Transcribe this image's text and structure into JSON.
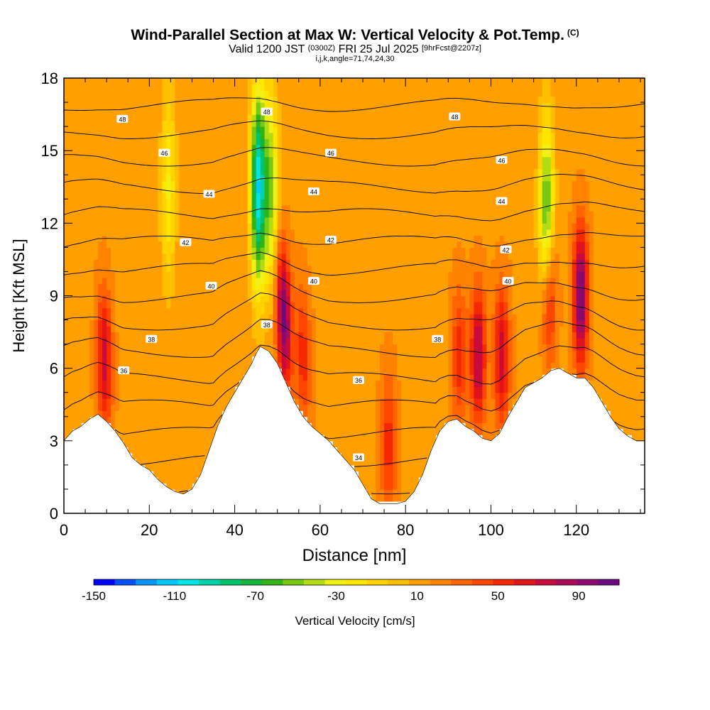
{
  "header": {
    "title": "Wind-Parallel Section at Max W: Vertical Velocity & Pot.Temp.",
    "copyright": "(C)",
    "valid_prefix": "Valid 1200 JST",
    "valid_utc": "(0300Z)",
    "valid_date": "FRI 25 Jul 2025",
    "forecast": "[9hrFcst@2207z]",
    "grid_info": "i,j,k,angle=71,74,24,30"
  },
  "chart_data": {
    "type": "heatmap",
    "xlabel": "Distance [nm]",
    "ylabel": "Height [Kft MSL]",
    "xlim": [
      0,
      136
    ],
    "ylim": [
      0,
      18
    ],
    "x_ticks": [
      0,
      20,
      40,
      60,
      80,
      100,
      120
    ],
    "y_ticks": [
      0,
      3,
      6,
      9,
      12,
      15,
      18
    ],
    "colorbar": {
      "label": "Vertical Velocity [cm/s]",
      "range": [
        -150,
        110
      ],
      "tick_labels": [
        -150,
        -110,
        -70,
        -30,
        10,
        50,
        90
      ],
      "colors": [
        "#0000ff",
        "#0050ff",
        "#0096ff",
        "#00c8ff",
        "#00e6e6",
        "#00d2aa",
        "#00c36e",
        "#14b43c",
        "#32b414",
        "#78c814",
        "#b4dc14",
        "#f0f014",
        "#ffe600",
        "#ffd200",
        "#ffbe00",
        "#ffa000",
        "#ff8200",
        "#ff6400",
        "#ff4600",
        "#f52800",
        "#e1141e",
        "#c80a3c",
        "#aa0a5a",
        "#8c0a6e",
        "#6e0a82"
      ]
    },
    "terrain_profile": {
      "x": [
        0,
        2,
        4,
        6,
        8,
        10,
        12,
        14,
        16,
        18,
        20,
        22,
        24,
        26,
        28,
        30,
        32,
        34,
        36,
        38,
        40,
        42,
        44,
        45,
        46,
        48,
        50,
        52,
        54,
        56,
        58,
        60,
        62,
        64,
        66,
        68,
        70,
        72,
        74,
        76,
        78,
        80,
        82,
        84,
        86,
        88,
        90,
        92,
        94,
        96,
        98,
        100,
        102,
        104,
        106,
        108,
        110,
        112,
        114,
        116,
        118,
        120,
        122,
        124,
        126,
        128,
        130,
        132,
        134,
        136
      ],
      "height_kft": [
        3.0,
        3.4,
        3.6,
        3.9,
        4.1,
        3.8,
        3.4,
        2.9,
        2.3,
        2.0,
        1.8,
        1.4,
        1.1,
        0.9,
        0.8,
        1.0,
        1.6,
        2.6,
        3.6,
        4.4,
        5.0,
        5.6,
        6.2,
        6.6,
        6.9,
        6.7,
        6.2,
        5.4,
        4.6,
        4.0,
        3.6,
        3.3,
        3.0,
        2.6,
        2.2,
        1.8,
        1.2,
        0.6,
        0.4,
        0.4,
        0.4,
        0.5,
        0.9,
        1.6,
        2.6,
        3.4,
        3.8,
        3.9,
        3.6,
        3.4,
        3.1,
        3.0,
        3.3,
        4.0,
        4.6,
        5.2,
        5.4,
        5.6,
        5.9,
        6.0,
        5.8,
        5.6,
        5.6,
        5.2,
        4.6,
        4.0,
        3.5,
        3.2,
        3.0,
        3.0
      ]
    },
    "updraft_cores": [
      {
        "x": 9.5,
        "peak_cm_s": 60
      },
      {
        "x": 24.5,
        "peak_cm_s": -40
      },
      {
        "x": 45.5,
        "peak_cm_s": -120
      },
      {
        "x": 48.5,
        "peak_cm_s": -60
      },
      {
        "x": 51.5,
        "peak_cm_s": 90
      },
      {
        "x": 56,
        "peak_cm_s": 40
      },
      {
        "x": 76,
        "peak_cm_s": 40
      },
      {
        "x": 92.5,
        "peak_cm_s": 40
      },
      {
        "x": 97,
        "peak_cm_s": 70
      },
      {
        "x": 102.5,
        "peak_cm_s": 60
      },
      {
        "x": 113.5,
        "peak_cm_s": 60
      },
      {
        "x": 113,
        "peak_cm_s": -80
      },
      {
        "x": 121,
        "peak_cm_s": 90
      }
    ],
    "theta_contours_K": [
      34,
      35,
      36,
      37,
      38,
      39,
      40,
      41,
      42,
      43,
      44,
      45,
      46,
      47,
      48
    ],
    "contour_labels": [
      {
        "text": "48",
        "x": 13.7,
        "y": 16.3
      },
      {
        "text": "48",
        "x": 47.5,
        "y": 16.6
      },
      {
        "text": "48",
        "x": 91.5,
        "y": 16.4
      },
      {
        "text": "46",
        "x": 23.5,
        "y": 14.9
      },
      {
        "text": "46",
        "x": 62.5,
        "y": 14.9
      },
      {
        "text": "46",
        "x": 102.5,
        "y": 14.6
      },
      {
        "text": "44",
        "x": 34,
        "y": 13.2
      },
      {
        "text": "44",
        "x": 58.5,
        "y": 13.3
      },
      {
        "text": "44",
        "x": 102.5,
        "y": 12.9
      },
      {
        "text": "42",
        "x": 28.5,
        "y": 11.2
      },
      {
        "text": "42",
        "x": 62.5,
        "y": 11.3
      },
      {
        "text": "42",
        "x": 103.5,
        "y": 10.9
      },
      {
        "text": "40",
        "x": 34.5,
        "y": 9.4
      },
      {
        "text": "40",
        "x": 58.5,
        "y": 9.6
      },
      {
        "text": "40",
        "x": 104,
        "y": 9.6
      },
      {
        "text": "38",
        "x": 20.5,
        "y": 7.2
      },
      {
        "text": "38",
        "x": 47.5,
        "y": 7.8
      },
      {
        "text": "38",
        "x": 87.5,
        "y": 7.2
      },
      {
        "text": "36",
        "x": 14,
        "y": 5.9
      },
      {
        "text": "36",
        "x": 69,
        "y": 5.5
      },
      {
        "text": "34",
        "x": 69,
        "y": 2.3
      }
    ]
  }
}
